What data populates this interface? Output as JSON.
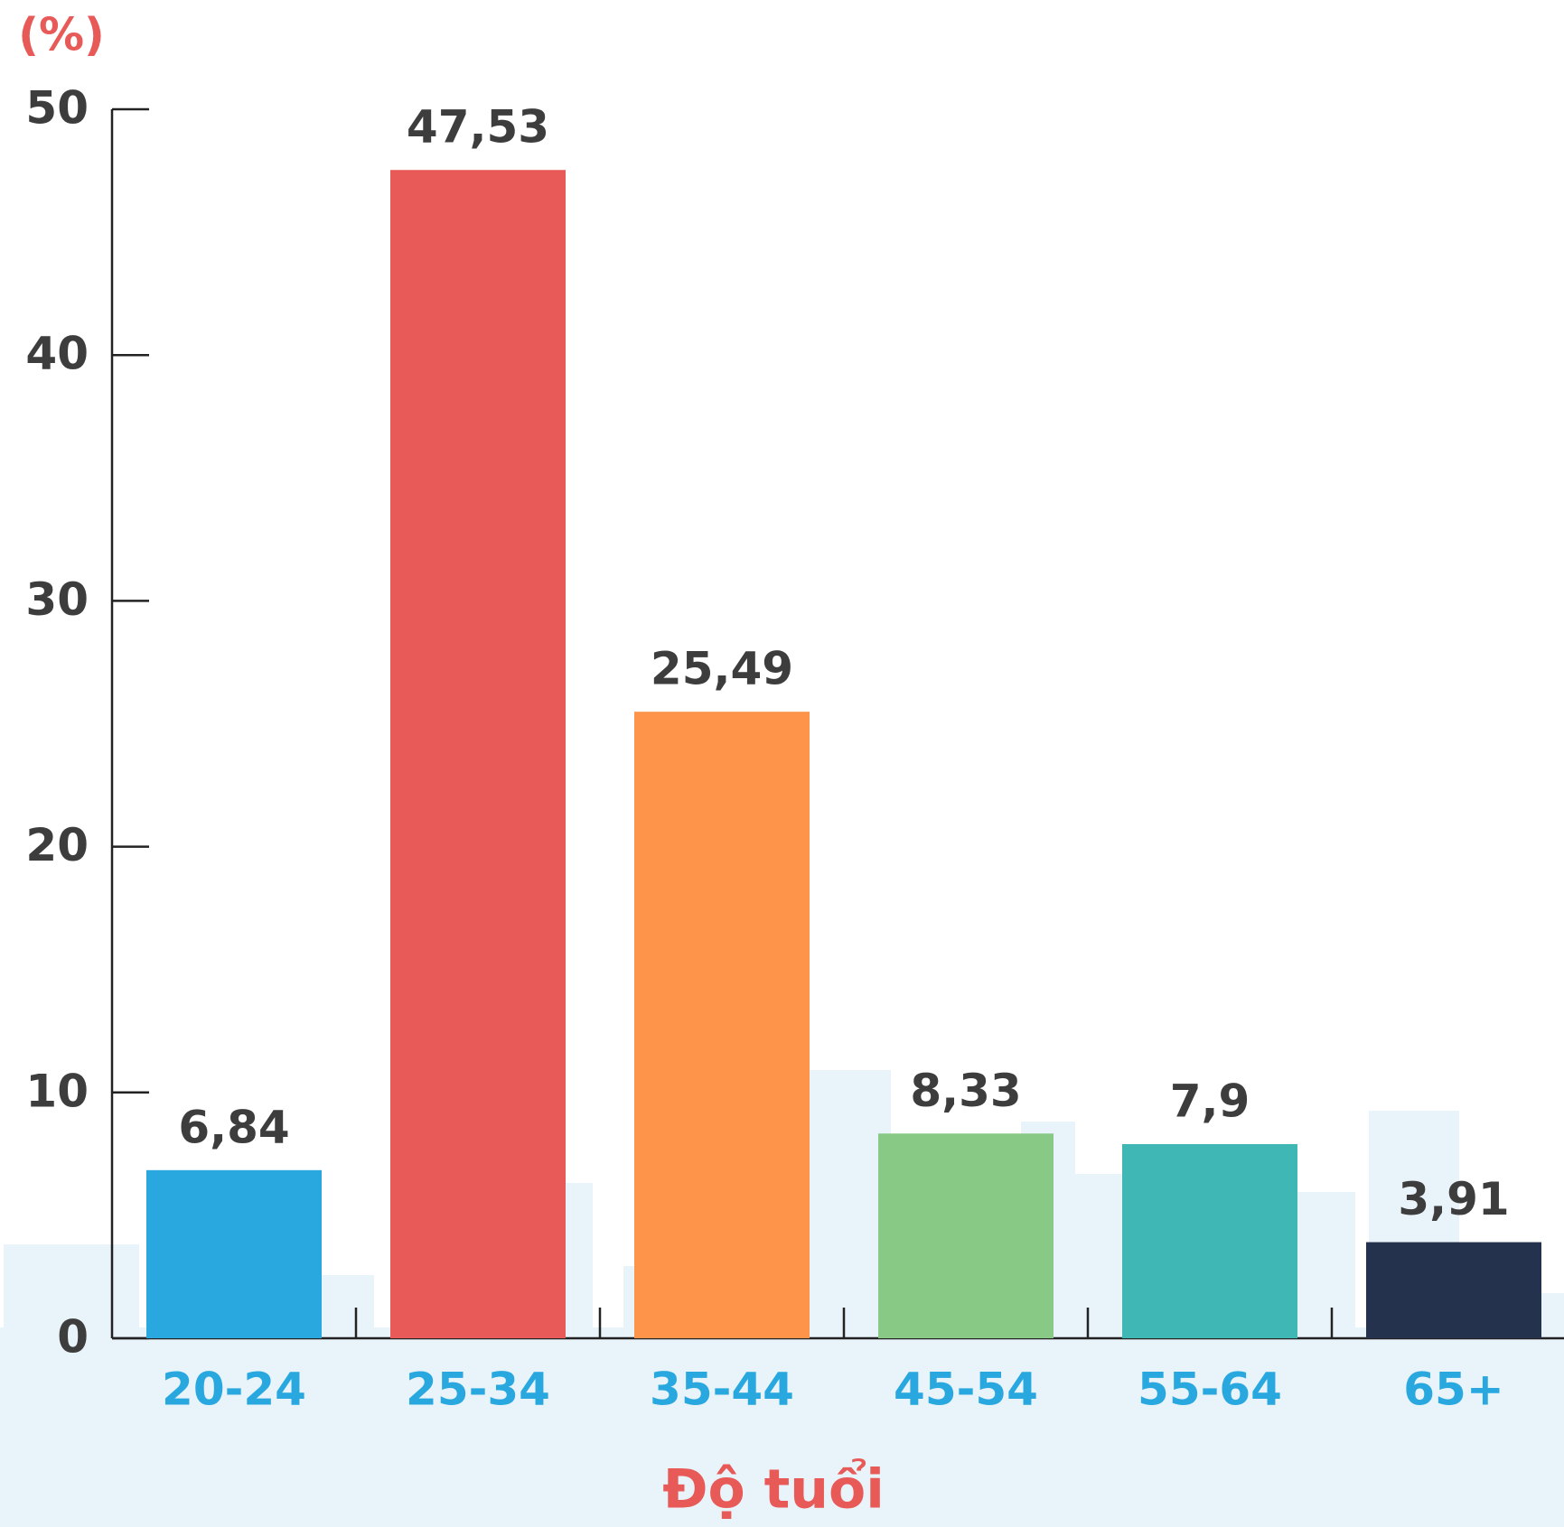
{
  "chart_data": {
    "type": "bar",
    "unit_label": "(%)",
    "x_label": "Độ tuổi",
    "categories": [
      "20-24",
      "25-34",
      "35-44",
      "45-54",
      "55-64",
      "65+"
    ],
    "values": [
      6.84,
      47.53,
      25.49,
      8.33,
      7.9,
      3.91
    ],
    "value_labels": [
      "6,84",
      "47,53",
      "25,49",
      "8,33",
      "7,9",
      "3,91"
    ],
    "colors": [
      "#29a8e0",
      "#e75a57",
      "#fe9449",
      "#88c986",
      "#3fb8b5",
      "#24324d"
    ],
    "ylim": [
      0,
      50
    ],
    "yticks": [
      0,
      10,
      20,
      30,
      40,
      50
    ]
  }
}
